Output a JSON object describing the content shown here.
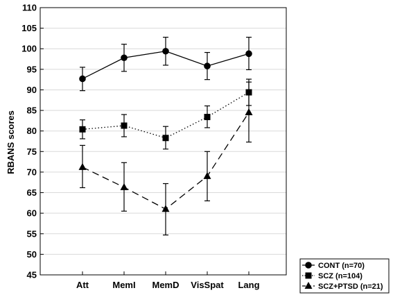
{
  "chart_data": {
    "type": "line",
    "ylabel": "RBANS scores",
    "ylim": [
      45,
      110
    ],
    "yticks": [
      45,
      50,
      55,
      60,
      65,
      70,
      75,
      80,
      85,
      90,
      95,
      100,
      105,
      110
    ],
    "categories": [
      "Att",
      "MemI",
      "MemD",
      "VisSpat",
      "Lang"
    ],
    "grid": "horizontal",
    "legend_position": "bottom-right-outside",
    "series": [
      {
        "name": "CONT (n=70)",
        "marker": "circle",
        "line": "solid",
        "values": [
          92.7,
          97.8,
          99.4,
          95.8,
          98.8
        ],
        "error_low": [
          89.8,
          94.5,
          96.0,
          92.5,
          94.9
        ],
        "error_high": [
          95.5,
          101.1,
          102.8,
          99.1,
          102.8
        ]
      },
      {
        "name": "SCZ (n=104)",
        "marker": "square",
        "line": "dotted",
        "values": [
          80.4,
          81.3,
          78.3,
          83.4,
          89.4
        ],
        "error_low": [
          78.1,
          78.6,
          75.6,
          80.8,
          86.2
        ],
        "error_high": [
          82.7,
          84.0,
          81.1,
          86.1,
          92.6
        ]
      },
      {
        "name": "SCZ+PTSD (n=21)",
        "marker": "triangle",
        "line": "dashed",
        "values": [
          71.2,
          66.3,
          61.0,
          69.0,
          84.5
        ],
        "error_low": [
          66.2,
          60.5,
          54.7,
          63.0,
          77.3
        ],
        "error_high": [
          76.5,
          72.3,
          67.2,
          75.0,
          91.9
        ]
      }
    ]
  }
}
